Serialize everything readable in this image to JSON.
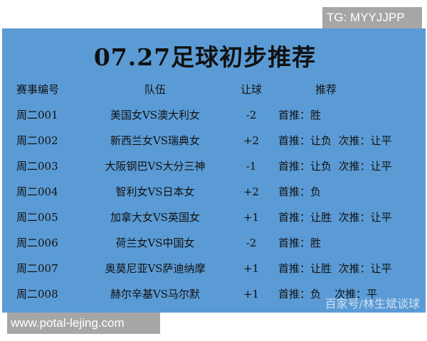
{
  "watermark_top": "TG: MYYJJPP",
  "watermark_bottom": "www.potal-lejing.com",
  "watermark_source": "百家号/林生斌谈球",
  "title": "07.27足球初步推荐",
  "colors": {
    "panel": "#5b9bd5",
    "overlay": "#a6a6a6"
  },
  "headers": {
    "id": "赛事编号",
    "team": "队伍",
    "handicap": "让球",
    "rec": "推荐"
  },
  "rows": [
    {
      "id": "周二001",
      "team": "美国女VS澳大利女",
      "handicap": "-2",
      "rec": "首推：胜"
    },
    {
      "id": "周二002",
      "team": "新西兰女VS瑞典女",
      "handicap": "+2",
      "rec": "首推：让负  次推：让平"
    },
    {
      "id": "周二003",
      "team": "大阪钢巴VS大分三神",
      "handicap": "-1",
      "rec": "首推：让负  次推：让平"
    },
    {
      "id": "周二004",
      "team": "智利女VS日本女",
      "handicap": "+2",
      "rec": "首推：负"
    },
    {
      "id": "周二005",
      "team": "加拿大女VS英国女",
      "handicap": "+1",
      "rec": "首推：让胜  次推：让平"
    },
    {
      "id": "周二006",
      "team": "荷兰女VS中国女",
      "handicap": "-2",
      "rec": "首推：胜"
    },
    {
      "id": "周二007",
      "team": "奥莫尼亚VS萨迪纳摩",
      "handicap": "+1",
      "rec": "首推：让胜  次推：让平"
    },
    {
      "id": "周二008",
      "team": "赫尔辛基VS马尔默",
      "handicap": "+1",
      "rec": "首推：负    次推：平"
    }
  ]
}
